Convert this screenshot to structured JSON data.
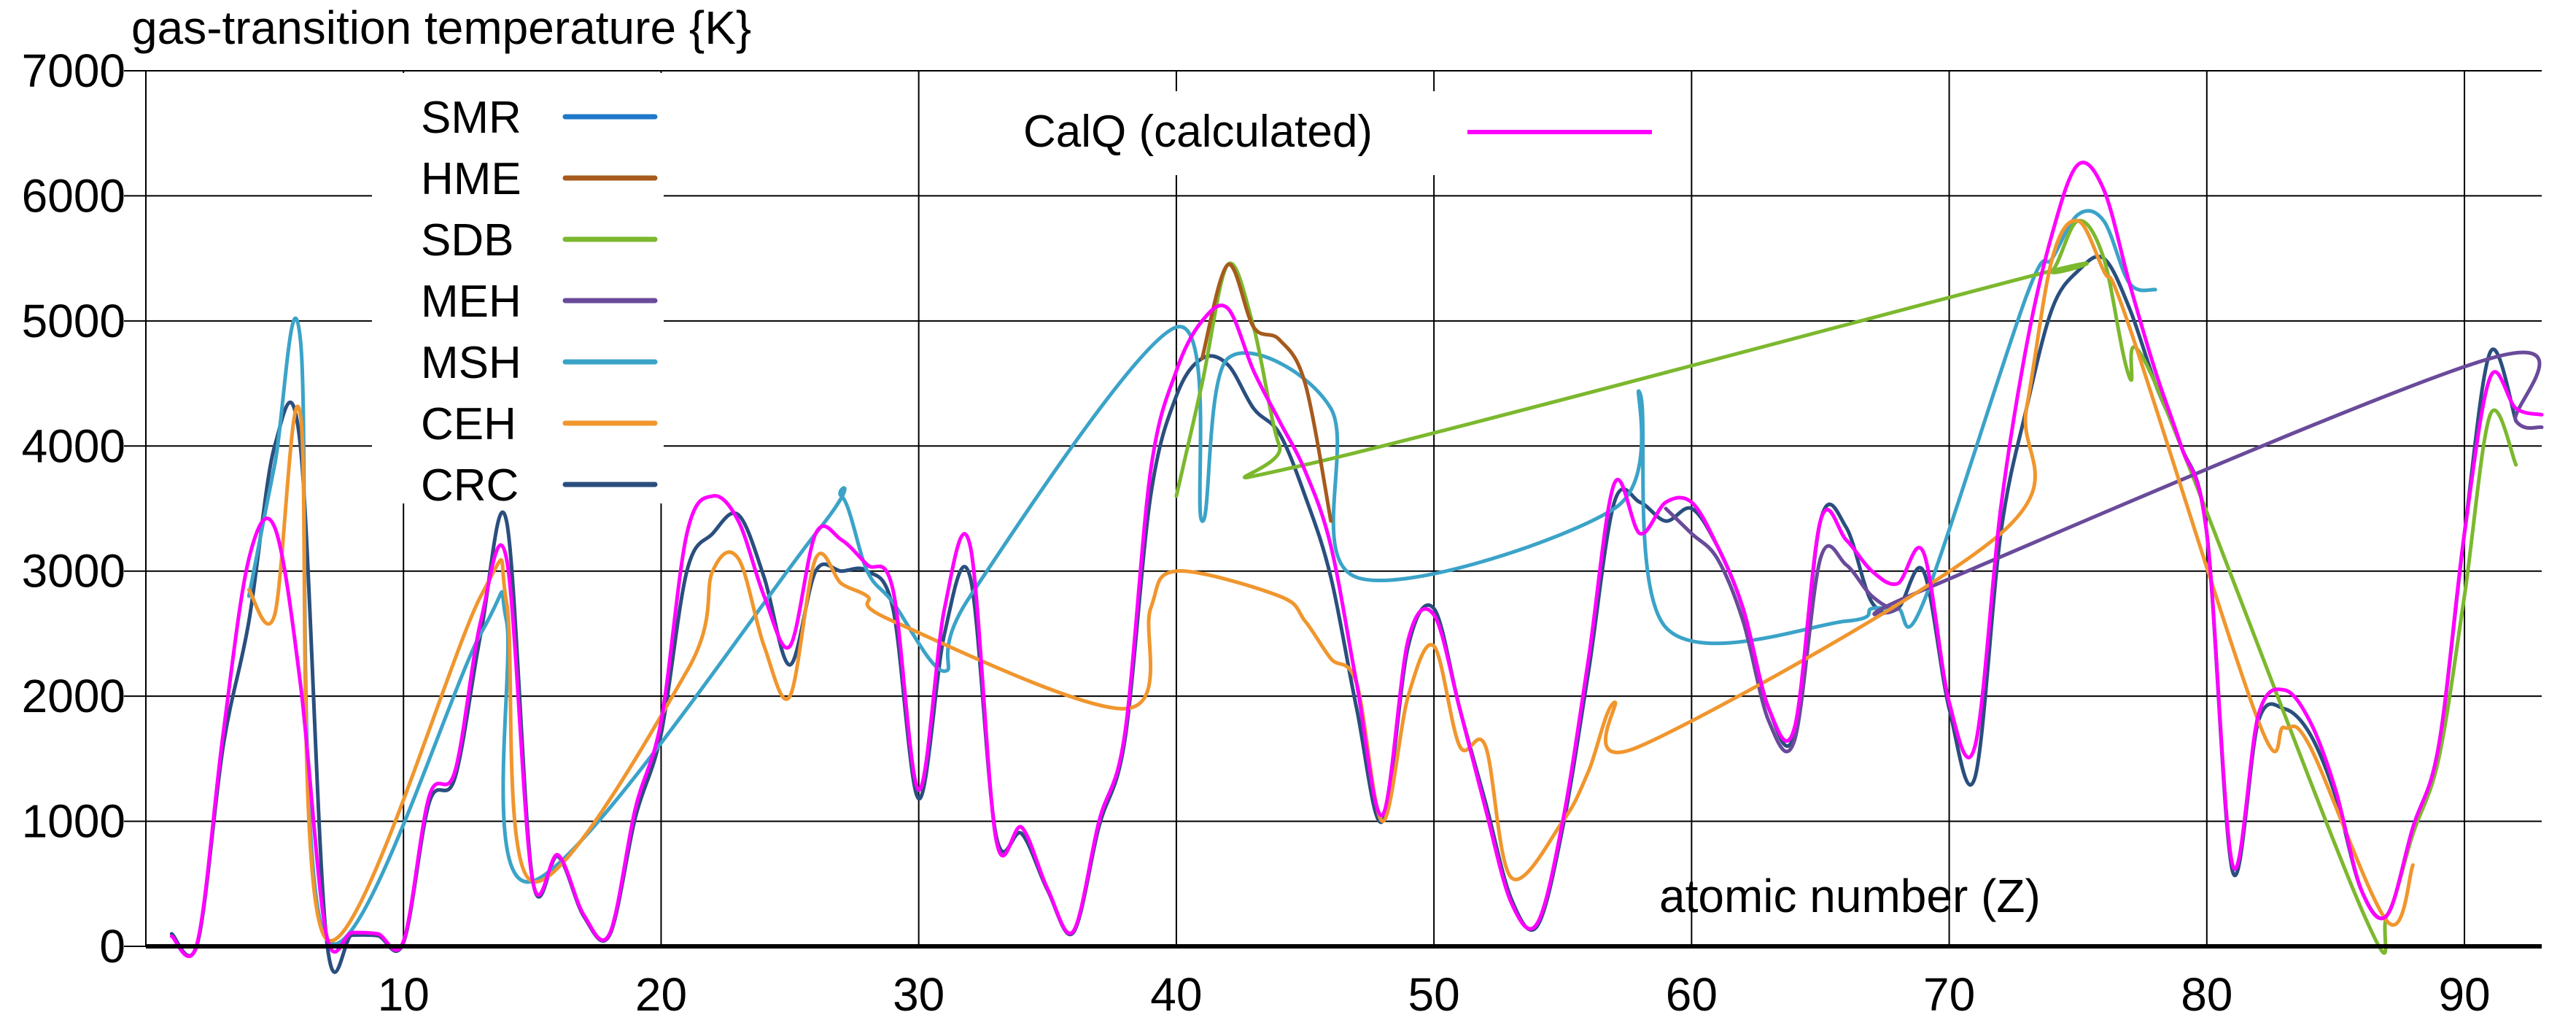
{
  "chart_data": {
    "type": "line",
    "ylabel": "gas-transition temperature {K}",
    "xlabel": "atomic number (Z)",
    "xlim": [
      0,
      93
    ],
    "ylim": [
      0,
      7000
    ],
    "x_ticks": [
      10,
      20,
      30,
      40,
      50,
      60,
      70,
      80,
      90
    ],
    "y_ticks": [
      0,
      1000,
      2000,
      3000,
      4000,
      5000,
      6000,
      7000
    ],
    "grid": true,
    "legend_left": [
      {
        "label": "SMR",
        "color": "#1f78c8"
      },
      {
        "label": "HME",
        "color": "#a65a1c"
      },
      {
        "label": "SDB",
        "color": "#7cb82e"
      },
      {
        "label": "MEH",
        "color": "#6a4a9a"
      },
      {
        "label": "MSH",
        "color": "#3ba3c8"
      },
      {
        "label": "CEH",
        "color": "#f0962e"
      },
      {
        "label": "CRC",
        "color": "#2a4f7e"
      }
    ],
    "legend_right": {
      "label": "CalQ (calculated)",
      "color": "#ff00ff"
    },
    "series": [
      {
        "name": "CRC",
        "color": "#2a4f7e",
        "points": [
          [
            1,
            100
          ],
          [
            2,
            20
          ],
          [
            3,
            1600
          ],
          [
            4,
            2600
          ],
          [
            5,
            4000
          ],
          [
            6,
            4000
          ],
          [
            7,
            80
          ],
          [
            8,
            90
          ],
          [
            9,
            85
          ],
          [
            10,
            30
          ],
          [
            11,
            1150
          ],
          [
            12,
            1350
          ],
          [
            13,
            2500
          ],
          [
            14,
            3400
          ],
          [
            15,
            550
          ],
          [
            16,
            720
          ],
          [
            17,
            240
          ],
          [
            18,
            90
          ],
          [
            19,
            1030
          ],
          [
            20,
            1700
          ],
          [
            21,
            3000
          ],
          [
            22,
            3300
          ],
          [
            23,
            3450
          ],
          [
            24,
            2950
          ],
          [
            25,
            2250
          ],
          [
            26,
            3000
          ],
          [
            27,
            3000
          ],
          [
            28,
            3000
          ],
          [
            29,
            2700
          ],
          [
            30,
            1180
          ],
          [
            31,
            2500
          ],
          [
            32,
            2950
          ],
          [
            33,
            890
          ],
          [
            34,
            900
          ],
          [
            35,
            450
          ],
          [
            36,
            110
          ],
          [
            37,
            960
          ],
          [
            38,
            1650
          ],
          [
            39,
            3600
          ],
          [
            40,
            4400
          ],
          [
            41,
            4700
          ],
          [
            42,
            4650
          ],
          [
            43,
            4300
          ],
          [
            44,
            4100
          ],
          [
            45,
            3600
          ],
          [
            46,
            2950
          ],
          [
            47,
            1900
          ],
          [
            48,
            1000
          ],
          [
            49,
            2400
          ],
          [
            50,
            2700
          ],
          [
            51,
            1900
          ],
          [
            52,
            1150
          ],
          [
            53,
            380
          ],
          [
            54,
            160
          ],
          [
            55,
            950
          ],
          [
            56,
            2200
          ],
          [
            57,
            3550
          ],
          [
            58,
            3550
          ],
          [
            59,
            3400
          ],
          [
            60,
            3500
          ],
          [
            61,
            3200
          ],
          [
            62,
            2700
          ],
          [
            63,
            1900
          ],
          [
            64,
            1700
          ],
          [
            65,
            3400
          ],
          [
            66,
            3350
          ],
          [
            67,
            2750
          ],
          [
            68,
            2700
          ],
          [
            69,
            3000
          ],
          [
            70,
            1900
          ],
          [
            71,
            1350
          ],
          [
            72,
            3300
          ],
          [
            73,
            4300
          ],
          [
            74,
            5100
          ],
          [
            75,
            5400
          ],
          [
            76,
            5500
          ],
          [
            77,
            5100
          ],
          [
            78,
            4500
          ],
          [
            79,
            4000
          ],
          [
            80,
            3300
          ],
          [
            81,
            600
          ],
          [
            82,
            1800
          ],
          [
            83,
            1900
          ],
          [
            84,
            1700
          ],
          [
            85,
            1200
          ],
          [
            86,
            450
          ],
          [
            87,
            250
          ],
          [
            88,
            950
          ],
          [
            89,
            1600
          ],
          [
            90,
            3300
          ],
          [
            91,
            4750
          ],
          [
            92,
            4200
          ]
        ]
      },
      {
        "name": "MSH",
        "color": "#3ba3c8",
        "points": [
          [
            4,
            2800
          ],
          [
            5,
            3850
          ],
          [
            6,
            4850
          ],
          [
            7,
            60
          ],
          [
            13,
            2500
          ],
          [
            14,
            2600
          ],
          [
            15,
            520
          ],
          [
            26,
            3300
          ],
          [
            27,
            3600
          ],
          [
            28,
            3000
          ],
          [
            29,
            2750
          ],
          [
            31,
            2200
          ],
          [
            32,
            2800
          ],
          [
            40,
            4950
          ],
          [
            41,
            3400
          ],
          [
            42,
            4700
          ],
          [
            46,
            4300
          ],
          [
            47,
            2950
          ],
          [
            57,
            3500
          ],
          [
            58,
            4420
          ],
          [
            59,
            2550
          ],
          [
            66,
            2600
          ],
          [
            67,
            2700
          ],
          [
            68,
            2700
          ],
          [
            69,
            2750
          ],
          [
            73,
            5200
          ],
          [
            74,
            5500
          ],
          [
            75,
            5850
          ],
          [
            76,
            5800
          ],
          [
            77,
            5300
          ],
          [
            78,
            5250
          ]
        ]
      },
      {
        "name": "SDB",
        "color": "#7cb82e",
        "points": [
          [
            40,
            3600
          ],
          [
            41,
            4500
          ],
          [
            42,
            5450
          ],
          [
            43,
            4950
          ],
          [
            44,
            4000
          ],
          [
            45,
            3850
          ],
          [
            73,
            5350
          ],
          [
            74,
            5400
          ],
          [
            75,
            5800
          ],
          [
            76,
            5500
          ],
          [
            77,
            4550
          ],
          [
            78,
            4500
          ],
          [
            86,
            300
          ],
          [
            87,
            250
          ],
          [
            88,
            900
          ],
          [
            89,
            1500
          ],
          [
            90,
            2800
          ],
          [
            91,
            4250
          ],
          [
            92,
            3850
          ]
        ]
      },
      {
        "name": "HME",
        "color": "#a65a1c",
        "points": [
          [
            41,
            4700
          ],
          [
            42,
            5450
          ],
          [
            43,
            4950
          ],
          [
            44,
            4850
          ],
          [
            45,
            4500
          ],
          [
            46,
            3400
          ]
        ]
      },
      {
        "name": "MEH",
        "color": "#6a4a9a",
        "points": [
          [
            59,
            3500
          ],
          [
            60,
            3300
          ],
          [
            61,
            3100
          ],
          [
            62,
            2600
          ],
          [
            63,
            1800
          ],
          [
            64,
            1650
          ],
          [
            65,
            3100
          ],
          [
            66,
            3050
          ],
          [
            67,
            2800
          ],
          [
            68,
            2700
          ],
          [
            69,
            2850
          ],
          [
            91,
            4700
          ],
          [
            92,
            4200
          ],
          [
            93,
            4150
          ]
        ]
      },
      {
        "name": "CEH",
        "color": "#f0962e",
        "points": [
          [
            4,
            2850
          ],
          [
            5,
            2650
          ],
          [
            6,
            4250
          ],
          [
            7,
            60
          ],
          [
            13,
            2800
          ],
          [
            14,
            2750
          ],
          [
            15,
            520
          ],
          [
            21,
            2200
          ],
          [
            22,
            3000
          ],
          [
            23,
            3100
          ],
          [
            24,
            2400
          ],
          [
            25,
            2000
          ],
          [
            26,
            3100
          ],
          [
            27,
            2900
          ],
          [
            28,
            2800
          ],
          [
            29,
            2600
          ],
          [
            38,
            1900
          ],
          [
            39,
            2700
          ],
          [
            40,
            3000
          ],
          [
            44,
            2800
          ],
          [
            45,
            2600
          ],
          [
            46,
            2300
          ],
          [
            47,
            2100
          ],
          [
            48,
            1000
          ],
          [
            49,
            2000
          ],
          [
            50,
            2400
          ],
          [
            51,
            1600
          ],
          [
            52,
            1600
          ],
          [
            53,
            550
          ],
          [
            55,
            1000
          ],
          [
            56,
            1400
          ],
          [
            57,
            1950
          ],
          [
            58,
            1600
          ],
          [
            72,
            3300
          ],
          [
            73,
            4300
          ],
          [
            74,
            5500
          ],
          [
            75,
            5800
          ],
          [
            76,
            5400
          ],
          [
            77,
            4950
          ],
          [
            82,
            1800
          ],
          [
            83,
            1750
          ],
          [
            84,
            1600
          ],
          [
            87,
            200
          ],
          [
            88,
            650
          ]
        ]
      },
      {
        "name": "CalQ (calculated)",
        "color": "#ff00ff",
        "points": [
          [
            1,
            80
          ],
          [
            2,
            30
          ],
          [
            3,
            1700
          ],
          [
            4,
            3100
          ],
          [
            5,
            3350
          ],
          [
            6,
            2100
          ],
          [
            7,
            100
          ],
          [
            8,
            110
          ],
          [
            9,
            100
          ],
          [
            10,
            40
          ],
          [
            11,
            1200
          ],
          [
            12,
            1400
          ],
          [
            13,
            2600
          ],
          [
            14,
            3100
          ],
          [
            15,
            540
          ],
          [
            16,
            730
          ],
          [
            17,
            250
          ],
          [
            18,
            100
          ],
          [
            19,
            1100
          ],
          [
            20,
            1800
          ],
          [
            21,
            3300
          ],
          [
            22,
            3600
          ],
          [
            23,
            3400
          ],
          [
            24,
            2800
          ],
          [
            25,
            2400
          ],
          [
            26,
            3300
          ],
          [
            27,
            3250
          ],
          [
            28,
            3050
          ],
          [
            29,
            2850
          ],
          [
            30,
            1250
          ],
          [
            31,
            2700
          ],
          [
            32,
            3200
          ],
          [
            33,
            860
          ],
          [
            34,
            950
          ],
          [
            35,
            460
          ],
          [
            36,
            120
          ],
          [
            37,
            1000
          ],
          [
            38,
            1700
          ],
          [
            39,
            3800
          ],
          [
            40,
            4600
          ],
          [
            41,
            5000
          ],
          [
            42,
            5100
          ],
          [
            43,
            4600
          ],
          [
            44,
            4200
          ],
          [
            45,
            3800
          ],
          [
            46,
            3200
          ],
          [
            47,
            2100
          ],
          [
            48,
            1050
          ],
          [
            49,
            2450
          ],
          [
            50,
            2650
          ],
          [
            51,
            1900
          ],
          [
            52,
            1100
          ],
          [
            53,
            350
          ],
          [
            54,
            180
          ],
          [
            55,
            1000
          ],
          [
            56,
            2300
          ],
          [
            57,
            3700
          ],
          [
            58,
            3300
          ],
          [
            59,
            3550
          ],
          [
            60,
            3550
          ],
          [
            61,
            3200
          ],
          [
            62,
            2700
          ],
          [
            63,
            1900
          ],
          [
            64,
            1750
          ],
          [
            65,
            3400
          ],
          [
            66,
            3250
          ],
          [
            67,
            3000
          ],
          [
            68,
            2900
          ],
          [
            69,
            3150
          ],
          [
            70,
            1950
          ],
          [
            71,
            1600
          ],
          [
            72,
            3500
          ],
          [
            73,
            4800
          ],
          [
            74,
            5700
          ],
          [
            75,
            6250
          ],
          [
            76,
            6050
          ],
          [
            77,
            5300
          ],
          [
            78,
            4600
          ],
          [
            79,
            4000
          ],
          [
            80,
            3300
          ],
          [
            81,
            650
          ],
          [
            82,
            1850
          ],
          [
            83,
            2050
          ],
          [
            84,
            1800
          ],
          [
            85,
            1250
          ],
          [
            86,
            450
          ],
          [
            87,
            250
          ],
          [
            88,
            950
          ],
          [
            89,
            1600
          ],
          [
            90,
            3300
          ],
          [
            91,
            4550
          ],
          [
            92,
            4300
          ],
          [
            93,
            4250
          ]
        ]
      }
    ]
  }
}
